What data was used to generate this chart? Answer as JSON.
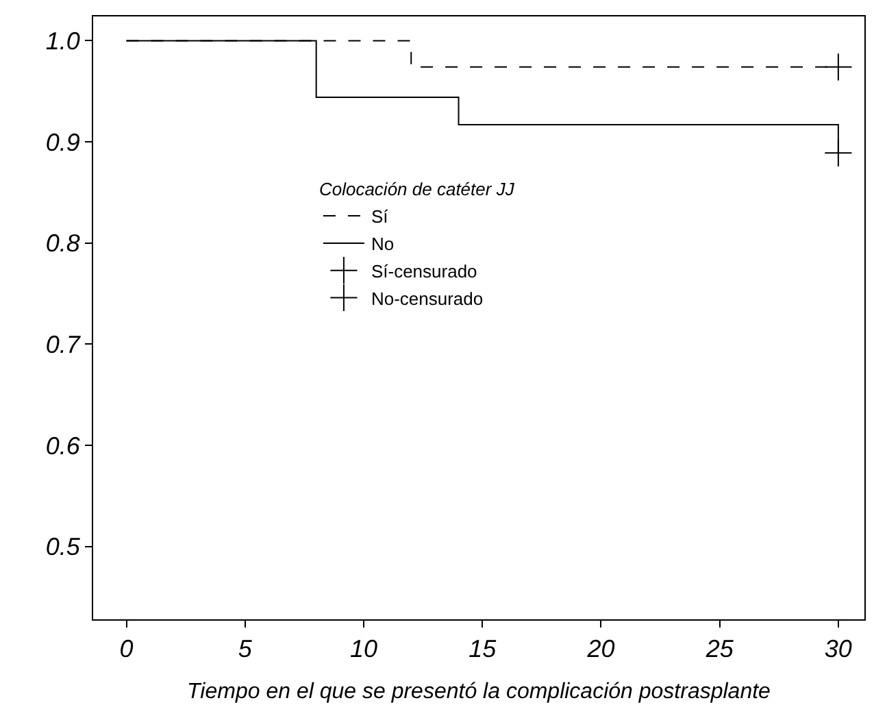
{
  "chart_data": {
    "type": "step",
    "xlabel": "Tiempo en el que se presentó la complicación postrasplante",
    "legend_title": "Colocación de catéter JJ",
    "legend": "center",
    "xlim": [
      -1.4,
      31.1
    ],
    "xticks": [
      0,
      5,
      10,
      15,
      20,
      25,
      30
    ],
    "ylim": [
      0.428,
      1.024
    ],
    "yticks": [
      {
        "value": 0.5,
        "label": "0.5"
      },
      {
        "value": 0.6,
        "label": "0.6"
      },
      {
        "value": 0.7,
        "label": "0.7"
      },
      {
        "value": 0.8,
        "label": "0.8"
      },
      {
        "value": 0.9,
        "label": "0.9"
      },
      {
        "value": 1.0,
        "label": "1.0"
      }
    ],
    "series": [
      {
        "name": "Sí",
        "color": "#000000",
        "line_style": "dashed",
        "x": [
          0,
          12,
          30
        ],
        "values": [
          1.0,
          0.974,
          0.974
        ]
      },
      {
        "name": "No",
        "color": "#000000",
        "line_style": "solid",
        "x": [
          0,
          8,
          14,
          30
        ],
        "values": [
          1.0,
          0.944,
          0.917,
          0.889
        ]
      },
      {
        "name": "Sí-censurado",
        "type": "scatter",
        "marker": "cross",
        "line_style": "dashed",
        "color": "#000000",
        "x": [
          30
        ],
        "values": [
          0.974
        ]
      },
      {
        "name": "No-censurado",
        "type": "scatter",
        "marker": "cross",
        "line_style": "solid",
        "color": "#000000",
        "x": [
          30
        ],
        "values": [
          0.889
        ]
      }
    ]
  }
}
